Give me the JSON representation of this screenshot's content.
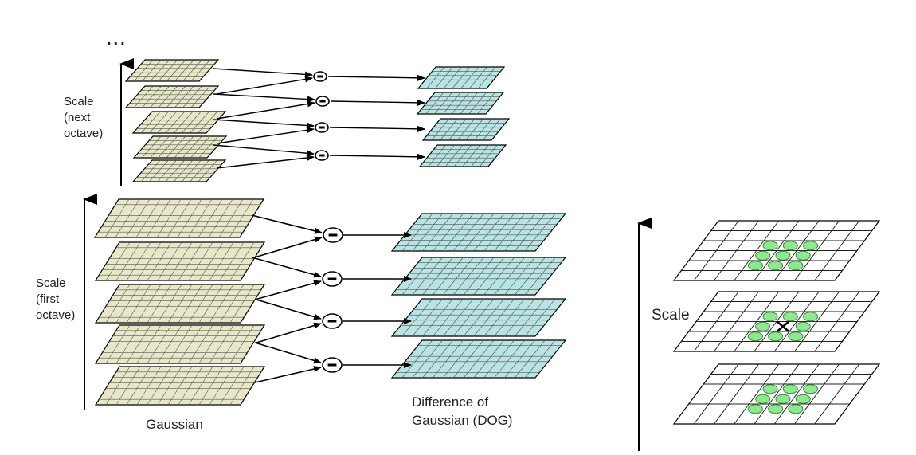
{
  "labels": {
    "ellipsis": "...",
    "scale_next_line1": "Scale",
    "scale_next_line2": "(next",
    "scale_next_line3": "octave)",
    "scale_first_line1": "Scale",
    "scale_first_line2": "(first",
    "scale_first_line3": "octave)",
    "gaussian": "Gaussian",
    "dog_line1": "Difference of",
    "dog_line2": "Gaussian (DOG)",
    "scale_right": "Scale",
    "minus_symbol": "−",
    "center_marker": "×"
  },
  "colors": {
    "gaussian_fill": "#e8e8c8",
    "dog_fill": "#b8e4e4",
    "grid_line": "#555555",
    "neighbor_fill": "#8ee88e",
    "neighbor_stroke": "#3a8a3a",
    "stroke": "#000000"
  },
  "grids": {
    "next_octave_gaussian_levels": 5,
    "next_octave_dog_levels": 4,
    "first_octave_gaussian_levels": 5,
    "first_octave_dog_levels": 4,
    "extrema_layers": 3
  }
}
